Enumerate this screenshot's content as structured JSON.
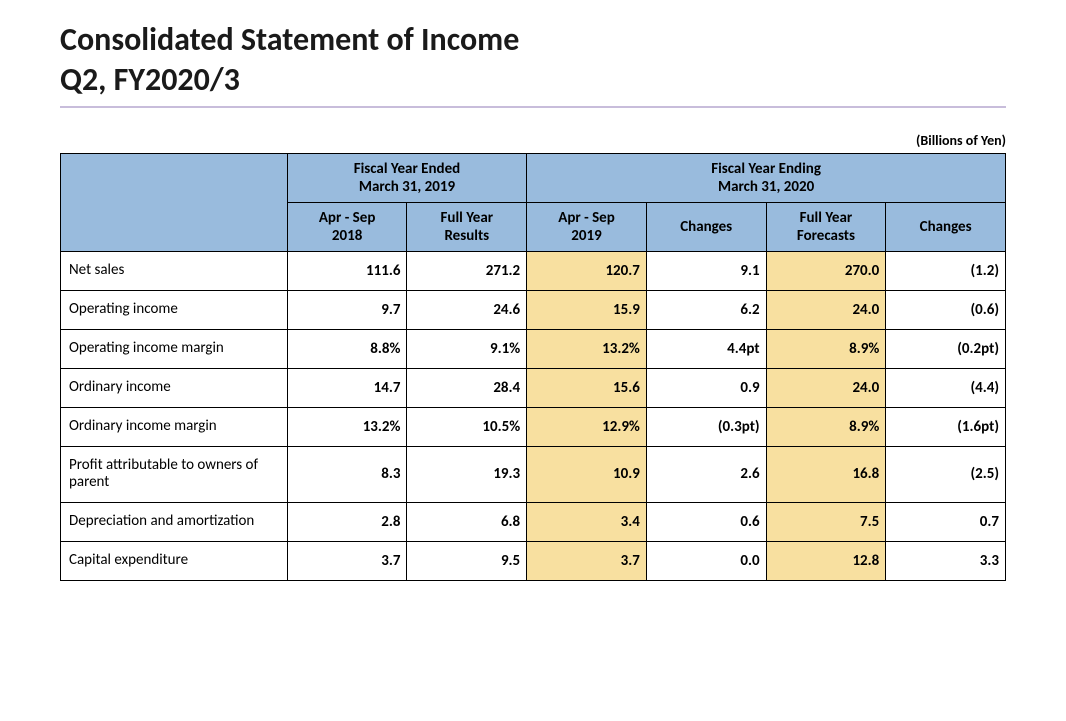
{
  "title": {
    "line1": "Consolidated Statement of Income",
    "line2": "Q2, FY2020/3"
  },
  "unit_label": "(Billions of Yen)",
  "colors": {
    "header_bg": "#99bbdd",
    "highlight_bg": "#f8e0a0",
    "border": "#000000",
    "rule": "#c8bddb",
    "text": "#000000"
  },
  "typography": {
    "title_fontsize_pt": 24,
    "cell_fontsize_pt": 11,
    "unit_fontsize_pt": 10
  },
  "table": {
    "header_group_left": {
      "line1": "Fiscal Year Ended",
      "line2": "March 31, 2019"
    },
    "header_group_right": {
      "line1": "Fiscal Year Ending",
      "line2": "March 31, 2020"
    },
    "subheaders": {
      "c1": {
        "line1": "Apr - Sep",
        "line2": "2018"
      },
      "c2": {
        "line1": "Full Year",
        "line2": "Results"
      },
      "c3": {
        "line1": "Apr - Sep",
        "line2": "2019"
      },
      "c4": {
        "line1": "Changes",
        "line2": ""
      },
      "c5": {
        "line1": "Full Year",
        "line2": "Forecasts"
      },
      "c6": {
        "line1": "Changes",
        "line2": ""
      }
    },
    "highlight_columns": [
      "c3",
      "c5"
    ],
    "rows": [
      {
        "label": "Net sales",
        "c1": "111.6",
        "c2": "271.2",
        "c3": "120.7",
        "c4": "9.1",
        "c5": "270.0",
        "c6": "(1.2)"
      },
      {
        "label": "Operating income",
        "c1": "9.7",
        "c2": "24.6",
        "c3": "15.9",
        "c4": "6.2",
        "c5": "24.0",
        "c6": "(0.6)"
      },
      {
        "label": "Operating income margin",
        "c1": "8.8%",
        "c2": "9.1%",
        "c3": "13.2%",
        "c4": "4.4pt",
        "c5": "8.9%",
        "c6": "(0.2pt)"
      },
      {
        "label": "Ordinary income",
        "c1": "14.7",
        "c2": "28.4",
        "c3": "15.6",
        "c4": "0.9",
        "c5": "24.0",
        "c6": "(4.4)"
      },
      {
        "label": "Ordinary income margin",
        "c1": "13.2%",
        "c2": "10.5%",
        "c3": "12.9%",
        "c4": "(0.3pt)",
        "c5": "8.9%",
        "c6": "(1.6pt)"
      },
      {
        "label": "Profit attributable to owners of parent",
        "c1": "8.3",
        "c2": "19.3",
        "c3": "10.9",
        "c4": "2.6",
        "c5": "16.8",
        "c6": "(2.5)"
      },
      {
        "label": "Depreciation and amortization",
        "c1": "2.8",
        "c2": "6.8",
        "c3": "3.4",
        "c4": "0.6",
        "c5": "7.5",
        "c6": "0.7"
      },
      {
        "label": "Capital expenditure",
        "c1": "3.7",
        "c2": "9.5",
        "c3": "3.7",
        "c4": "0.0",
        "c5": "12.8",
        "c6": "3.3"
      }
    ]
  }
}
